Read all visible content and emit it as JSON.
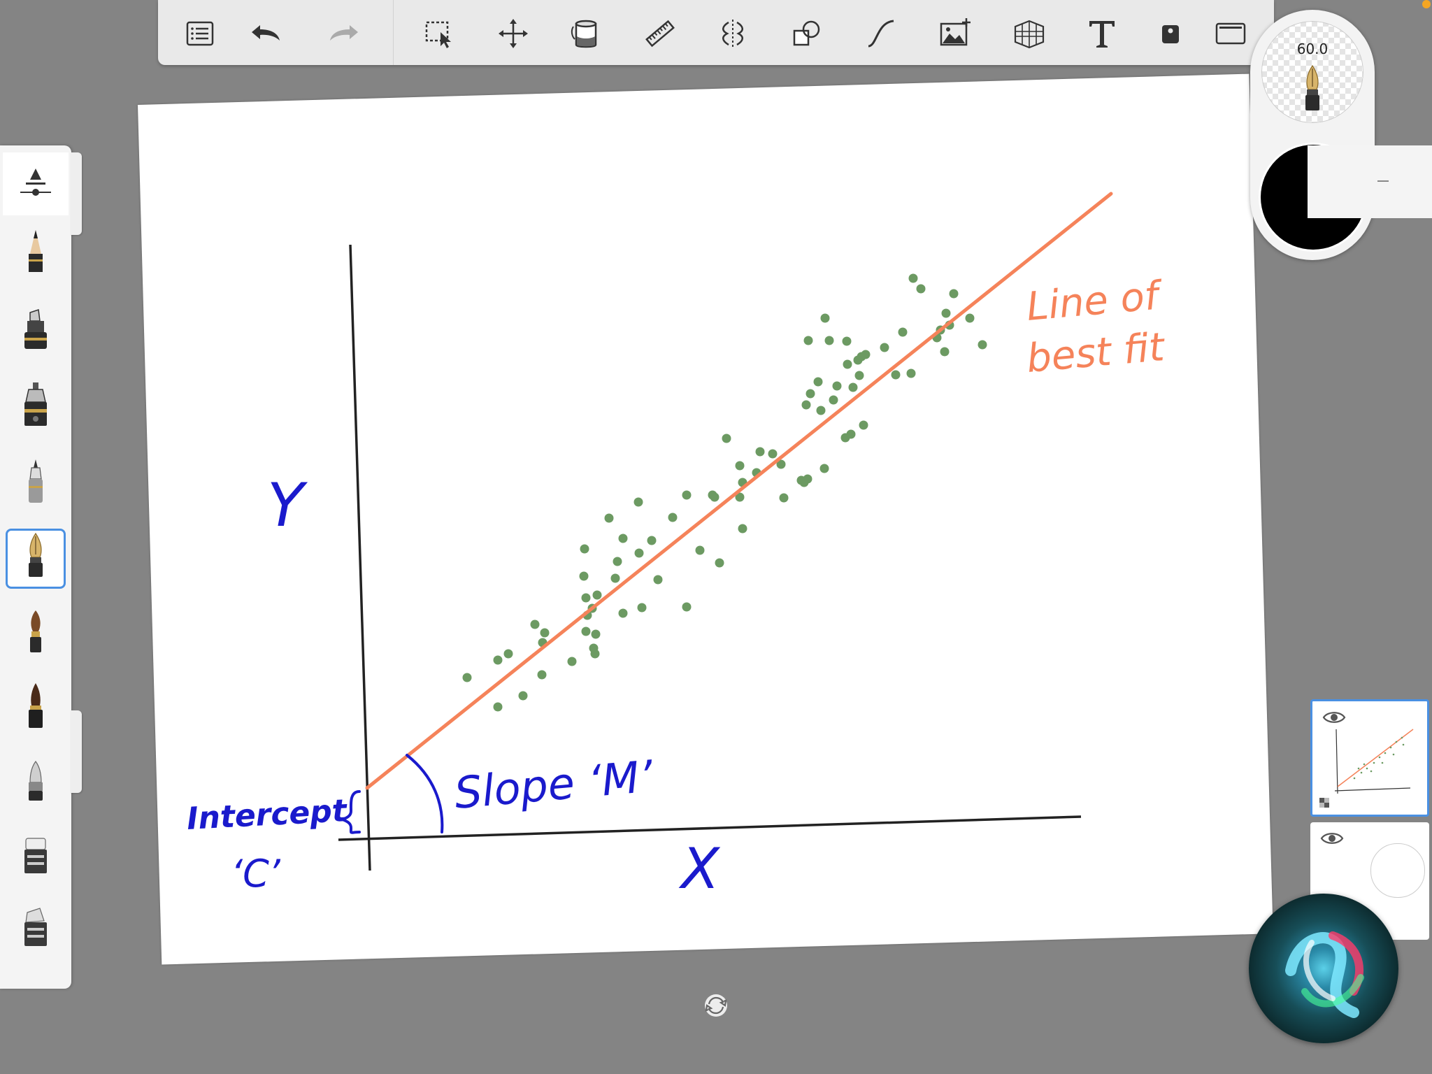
{
  "toolbar": {
    "buttons": [
      {
        "name": "layers-list-icon"
      },
      {
        "name": "undo-icon"
      },
      {
        "name": "redo-icon"
      },
      {
        "name": "selection-icon"
      },
      {
        "name": "transform-icon"
      },
      {
        "name": "fill-bucket-icon"
      },
      {
        "name": "ruler-icon"
      },
      {
        "name": "symmetry-icon"
      },
      {
        "name": "shapes-icon"
      },
      {
        "name": "curve-icon"
      },
      {
        "name": "add-image-icon"
      },
      {
        "name": "perspective-grid-icon"
      },
      {
        "name": "text-icon"
      },
      {
        "name": "stamp-icon"
      },
      {
        "name": "fullscreen-icon"
      }
    ]
  },
  "brushes": [
    {
      "name": "brush-settings-icon"
    },
    {
      "name": "pencil-icon"
    },
    {
      "name": "marker-icon"
    },
    {
      "name": "pen-icon"
    },
    {
      "name": "fineliner-icon"
    },
    {
      "name": "ink-pen-icon",
      "selected": true
    },
    {
      "name": "paint-brush-icon"
    },
    {
      "name": "brush-pen-icon"
    },
    {
      "name": "airbrush-icon"
    },
    {
      "name": "eraser-icon"
    },
    {
      "name": "smudge-icon"
    }
  ],
  "brush_puck": {
    "size_label": "60.0",
    "current_color": "#000000"
  },
  "drawing": {
    "y_label": "Y",
    "x_label": "X",
    "intercept_label": "Intercept",
    "intercept_symbol": "‘C’",
    "slope_label": "Slope ‘M’",
    "fit_label_line1": "Line of",
    "fit_label_line2": "best fit",
    "colors": {
      "axes": "#222222",
      "labels": "#1a1acc",
      "fit_line": "#f5835a",
      "points": "#6c9a62"
    }
  },
  "layers": [
    {
      "name": "layer-1",
      "visible": true,
      "active": true
    },
    {
      "name": "layer-2",
      "visible": true,
      "active": false
    }
  ]
}
